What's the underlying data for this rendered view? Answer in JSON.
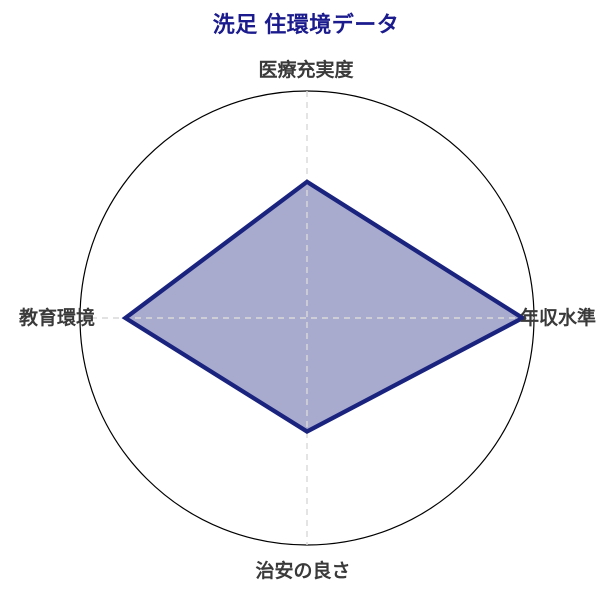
{
  "title": {
    "text": "洗足 住環境データ",
    "color": "#1b1b8e"
  },
  "chart_data": {
    "type": "radar",
    "title": "洗足 住環境データ",
    "categories": [
      "医療充実度",
      "年収水準",
      "治安の良さ",
      "教育環境"
    ],
    "values": [
      60,
      95,
      50,
      80
    ],
    "rmax": 100,
    "axes_positions": [
      "top",
      "right",
      "bottom",
      "left"
    ],
    "series_name": "洗足",
    "line_color": "#1a237e",
    "fill_color": "#1a237e",
    "fill_alpha": 0.38,
    "grid": {
      "outer_circle": true,
      "rings": false,
      "spokes": "dashed cross (vertical + horizontal)",
      "spoke_color": "#d9d9d9",
      "circle_color": "#000000"
    },
    "tick_labels": "none",
    "legend_position": "none"
  }
}
